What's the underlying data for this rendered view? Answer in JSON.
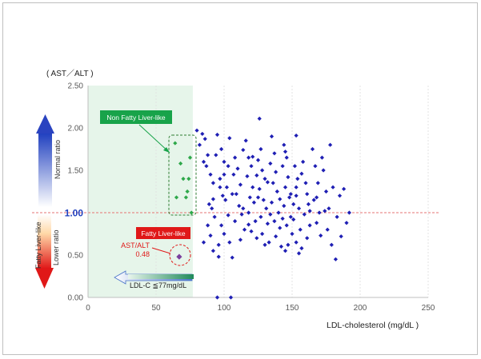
{
  "chart_data": {
    "type": "scatter",
    "title": "",
    "ylabel": "( AST／ALT )",
    "xlabel": "LDL-cholesterol  (mg/dL )",
    "xlim": [
      0,
      250
    ],
    "ylim": [
      0,
      2.5
    ],
    "x_ticks": [
      "0",
      "50",
      "100",
      "150",
      "200",
      "250"
    ],
    "y_ticks": [
      "0.00",
      "0.50",
      "1.00",
      "1.50",
      "2.00",
      "2.50"
    ],
    "reference_line_y": 1.0,
    "shaded_region_x": [
      0,
      77
    ],
    "legend": "none",
    "grid": "vertical",
    "colors": {
      "main_points": "#1f1fb4",
      "highlight_points": "#2ea84a",
      "fatty_point": "#7a3f9e",
      "shading": "#e6f5ea",
      "reference_line": "#e57373",
      "axis_text": "#595959"
    },
    "series": [
      {
        "name": "",
        "color": "#1f1fb4",
        "points": [
          [
            80,
            1.97
          ],
          [
            84,
            1.93
          ],
          [
            82,
            1.8
          ],
          [
            86,
            1.87
          ],
          [
            88,
            1.68
          ],
          [
            87,
            1.55
          ],
          [
            90,
            1.45
          ],
          [
            92,
            1.35
          ],
          [
            89,
            1.1
          ],
          [
            91,
            1.05
          ],
          [
            93,
            0.95
          ],
          [
            88,
            0.85
          ],
          [
            90,
            0.73
          ],
          [
            85,
            0.65
          ],
          [
            92,
            0.55
          ],
          [
            96,
            0.62
          ],
          [
            95,
            1.92
          ],
          [
            98,
            1.75
          ],
          [
            100,
            1.6
          ],
          [
            97,
            1.4
          ],
          [
            102,
            1.3
          ],
          [
            99,
            1.2
          ],
          [
            101,
            1.15
          ],
          [
            103,
            0.97
          ],
          [
            98,
            0.85
          ],
          [
            100,
            0.75
          ],
          [
            104,
            0.65
          ],
          [
            106,
            0.47
          ],
          [
            104,
            1.88
          ],
          [
            108,
            1.65
          ],
          [
            110,
            1.52
          ],
          [
            107,
            1.45
          ],
          [
            112,
            1.33
          ],
          [
            109,
            1.22
          ],
          [
            111,
            1.08
          ],
          [
            113,
            0.98
          ],
          [
            108,
            0.9
          ],
          [
            115,
            0.8
          ],
          [
            112,
            0.68
          ],
          [
            116,
            1.85
          ],
          [
            118,
            1.65
          ],
          [
            120,
            1.55
          ],
          [
            117,
            1.43
          ],
          [
            121,
            1.3
          ],
          [
            119,
            1.18
          ],
          [
            122,
            1.12
          ],
          [
            118,
            1.0
          ],
          [
            123,
            0.9
          ],
          [
            120,
            0.78
          ],
          [
            124,
            0.7
          ],
          [
            126,
            2.11
          ],
          [
            127,
            1.75
          ],
          [
            125,
            1.62
          ],
          [
            128,
            1.5
          ],
          [
            130,
            1.4
          ],
          [
            126,
            1.28
          ],
          [
            129,
            1.15
          ],
          [
            131,
            1.05
          ],
          [
            127,
            0.95
          ],
          [
            132,
            0.87
          ],
          [
            128,
            0.75
          ],
          [
            133,
            0.65
          ],
          [
            135,
            1.9
          ],
          [
            137,
            1.7
          ],
          [
            134,
            1.58
          ],
          [
            138,
            1.48
          ],
          [
            136,
            1.35
          ],
          [
            139,
            1.25
          ],
          [
            135,
            1.12
          ],
          [
            140,
            1.0
          ],
          [
            137,
            0.9
          ],
          [
            141,
            0.82
          ],
          [
            138,
            0.72
          ],
          [
            142,
            0.6
          ],
          [
            144,
            1.8
          ],
          [
            146,
            1.65
          ],
          [
            143,
            1.55
          ],
          [
            147,
            1.42
          ],
          [
            145,
            1.3
          ],
          [
            148,
            1.18
          ],
          [
            144,
            1.08
          ],
          [
            149,
            0.95
          ],
          [
            146,
            0.85
          ],
          [
            150,
            0.75
          ],
          [
            147,
            0.62
          ],
          [
            145,
            0.55
          ],
          [
            152,
            1.55
          ],
          [
            154,
            1.4
          ],
          [
            153,
            1.2
          ],
          [
            155,
            1.05
          ],
          [
            151,
            0.92
          ],
          [
            156,
            0.8
          ],
          [
            153,
            0.65
          ],
          [
            155,
            0.52
          ],
          [
            153,
            1.91
          ],
          [
            158,
            1.6
          ],
          [
            160,
            1.35
          ],
          [
            162,
            1.1
          ],
          [
            159,
            0.98
          ],
          [
            163,
            0.85
          ],
          [
            161,
            0.7
          ],
          [
            157,
            0.58
          ],
          [
            165,
            1.75
          ],
          [
            167,
            1.55
          ],
          [
            169,
            1.35
          ],
          [
            166,
            1.15
          ],
          [
            170,
            1.0
          ],
          [
            168,
            0.88
          ],
          [
            171,
            0.73
          ],
          [
            173,
            1.5
          ],
          [
            172,
            1.65
          ],
          [
            175,
            1.25
          ],
          [
            174,
            1.02
          ],
          [
            176,
            0.8
          ],
          [
            178,
            1.8
          ],
          [
            179,
            0.62
          ],
          [
            180,
            1.3
          ],
          [
            182,
            0.45
          ],
          [
            183,
            0.95
          ],
          [
            185,
            1.2
          ],
          [
            186,
            0.72
          ],
          [
            188,
            1.28
          ],
          [
            190,
            0.88
          ],
          [
            192,
            1.0
          ],
          [
            95,
            0.0
          ],
          [
            105,
            0.0
          ],
          [
            96,
            0.48
          ],
          [
            85,
            1.6
          ],
          [
            94,
            1.68
          ],
          [
            103,
            1.55
          ],
          [
            114,
            1.74
          ],
          [
            125,
            1.18
          ],
          [
            132,
            1.36
          ],
          [
            141,
            1.16
          ],
          [
            149,
            1.22
          ],
          [
            157,
            1.46
          ],
          [
            114,
            1.05
          ],
          [
            106,
            1.22
          ],
          [
            97,
            1.3
          ],
          [
            124,
            1.44
          ],
          [
            134,
            0.98
          ],
          [
            143,
            0.93
          ],
          [
            151,
            1.1
          ],
          [
            161,
            1.22
          ],
          [
            168,
            1.18
          ],
          [
            177,
            1.05
          ],
          [
            92,
            1.16
          ],
          [
            118,
            0.86
          ],
          [
            130,
            0.62
          ],
          [
            145,
            1.72
          ],
          [
            153,
            1.3
          ],
          [
            163,
            1.02
          ],
          [
            100,
            1.45
          ],
          [
            121,
            1.66
          ]
        ]
      },
      {
        "name": "Non Fatty  Liver-like",
        "color": "#2ea84a",
        "points": [
          [
            64,
            1.82
          ],
          [
            68,
            1.58
          ],
          [
            75,
            1.65
          ],
          [
            70,
            1.4
          ],
          [
            74,
            1.4
          ],
          [
            73,
            1.25
          ],
          [
            65,
            1.18
          ],
          [
            72,
            1.18
          ],
          [
            76,
            1.0
          ]
        ]
      },
      {
        "name": "Fatty  Liver-like",
        "color": "#7a3f9e",
        "points": [
          [
            67,
            0.48
          ]
        ]
      }
    ],
    "annotations": {
      "non_fatty_label": "Non Fatty  Liver-like",
      "fatty_label": "Fatty  Liver-like",
      "ast_alt_label": "AST/ALT",
      "ast_alt_value": "0.48",
      "ldl_threshold_label": "LDL-C  ≦77mg/dL",
      "normal_ratio_label": "Normal ratio",
      "lower_ratio_label": "Lower ratio",
      "fatty_liver_like_label": "Fatty  Liver-like"
    }
  }
}
